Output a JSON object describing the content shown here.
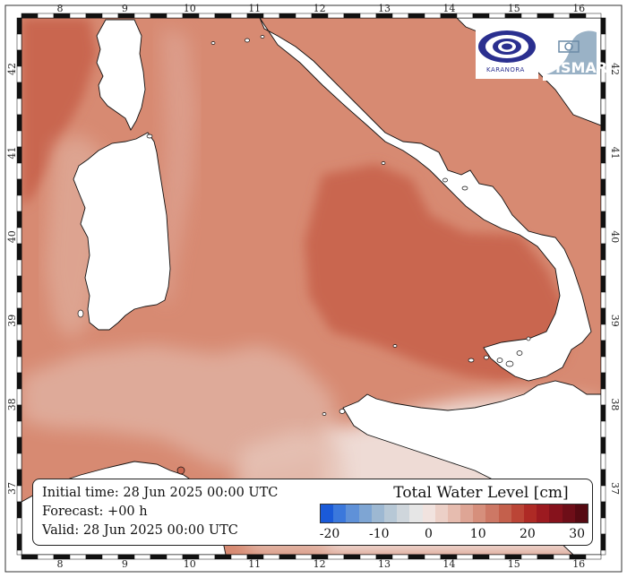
{
  "map": {
    "lon_ticks": [
      "8",
      "9",
      "10",
      "11",
      "12",
      "13",
      "14",
      "15",
      "16"
    ],
    "lat_ticks": [
      "37",
      "38",
      "39",
      "40",
      "41",
      "42"
    ],
    "colors": {
      "sea_base": "#d78a72",
      "sea_dark": "#c96650",
      "sea_light": "#e4b5a6",
      "sea_pale": "#eedbd5",
      "land": "#ffffff",
      "adriatic": "#c2d0dc"
    }
  },
  "info": {
    "initial": "Initial time: 28 Jun 2025 00:00 UTC",
    "forecast": "Forecast: +00 h",
    "valid": "Valid: 28 Jun 2025 00:00 UTC"
  },
  "legend": {
    "title": "Total Water Level [cm]",
    "ticks": [
      "-20",
      "-10",
      "0",
      "10",
      "20",
      "30"
    ],
    "colors": [
      "#1a5ad8",
      "#3b78dc",
      "#5f91d8",
      "#7ea5d3",
      "#9db8d2",
      "#b7c8d6",
      "#cfd6dc",
      "#e6e6e6",
      "#f1e3df",
      "#ecd0c7",
      "#e6bcaf",
      "#dea595",
      "#d68f7c",
      "#cd7865",
      "#c4604c",
      "#bb4536",
      "#ae2a25",
      "#9c1a20",
      "#86121c",
      "#6e0e18",
      "#560a12"
    ]
  },
  "logos": {
    "left": "KARANORA",
    "right": "ISMAR"
  }
}
